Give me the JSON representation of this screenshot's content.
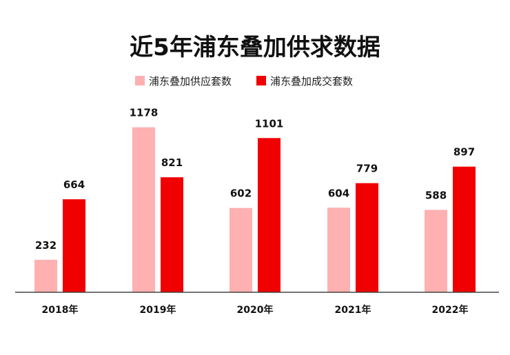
{
  "chart_data": {
    "type": "bar",
    "title": "近5年浦东叠加供求数据",
    "categories": [
      "2018年",
      "2019年",
      "2020年",
      "2021年",
      "2022年"
    ],
    "series": [
      {
        "name": "浦东叠加供应套数",
        "color": "#ffb0b0",
        "values": [
          232,
          1178,
          602,
          604,
          588
        ]
      },
      {
        "name": "浦东叠加成交套数",
        "color": "#f00000",
        "values": [
          664,
          821,
          1101,
          779,
          897
        ]
      }
    ],
    "xlabel": "",
    "ylabel": "",
    "ylim": [
      0,
      1250
    ],
    "grid": false,
    "legend": "top-center"
  }
}
